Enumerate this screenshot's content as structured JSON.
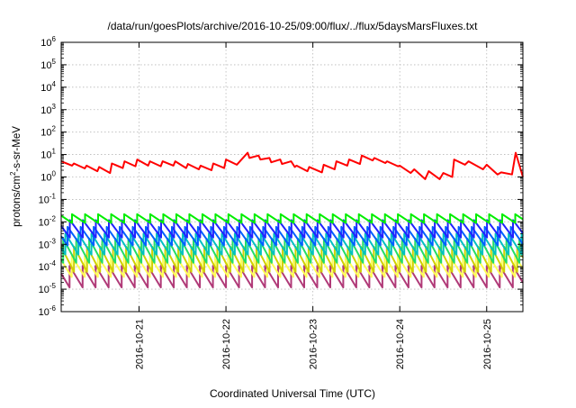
{
  "chart_data": {
    "type": "line",
    "title": "/data/run/goesPlots/archive/2016-10-25/09:00/flux/../flux/5daysMarsFluxes.txt",
    "xlabel": "Coordinated Universal Time (UTC)",
    "ylabel": "protons/cm2-s-sr-MeV",
    "y_scale": "log",
    "grid": true,
    "legend": "none",
    "xlim": [
      "2016-10-20T02:30",
      "2016-10-25T10:00"
    ],
    "ylim": [
      1e-06,
      1000000.0
    ],
    "x_tick_labels": [
      "2016-10-21",
      "2016-10-22",
      "2016-10-23",
      "2016-10-24",
      "2016-10-25"
    ],
    "y_tick_labels": [
      "10-6",
      "10-5",
      "10-4",
      "10-3",
      "10-2",
      "10-1",
      "100",
      "101",
      "102",
      "103",
      "104",
      "105",
      "106"
    ],
    "series": [
      {
        "color": "#ff0000",
        "x": [
          "2016-10-20T02:30",
          "2016-10-20T05:30",
          "2016-10-20T06:00",
          "2016-10-20T09:00",
          "2016-10-20T09:30",
          "2016-10-20T12:30",
          "2016-10-20T13:00",
          "2016-10-20T16:00",
          "2016-10-20T16:30",
          "2016-10-20T19:30",
          "2016-10-20T20:00",
          "2016-10-20T23:00",
          "2016-10-20T23:30",
          "2016-10-21T02:30",
          "2016-10-21T03:00",
          "2016-10-21T06:00",
          "2016-10-21T06:30",
          "2016-10-21T09:30",
          "2016-10-21T10:00",
          "2016-10-21T13:00",
          "2016-10-21T13:30",
          "2016-10-21T16:30",
          "2016-10-21T17:00",
          "2016-10-21T20:00",
          "2016-10-21T20:30",
          "2016-10-21T23:30",
          "2016-10-22T00:00",
          "2016-10-22T03:00",
          "2016-10-22T06:00",
          "2016-10-22T06:30",
          "2016-10-22T09:00",
          "2016-10-22T09:30",
          "2016-10-22T12:00",
          "2016-10-22T12:30",
          "2016-10-22T15:00",
          "2016-10-22T15:30",
          "2016-10-22T18:00",
          "2016-10-22T19:00",
          "2016-10-22T19:30",
          "2016-10-22T22:30",
          "2016-10-22T23:00",
          "2016-10-23T02:30",
          "2016-10-23T03:00",
          "2016-10-23T06:00",
          "2016-10-23T06:30",
          "2016-10-23T09:30",
          "2016-10-23T10:00",
          "2016-10-23T13:00",
          "2016-10-23T13:30",
          "2016-10-23T16:30",
          "2016-10-23T17:00",
          "2016-10-23T20:00",
          "2016-10-23T20:30",
          "2016-10-23T23:30",
          "2016-10-24T00:00",
          "2016-10-24T03:00",
          "2016-10-24T04:00",
          "2016-10-24T07:00",
          "2016-10-24T08:00",
          "2016-10-24T11:00",
          "2016-10-24T12:00",
          "2016-10-24T14:30",
          "2016-10-24T15:00",
          "2016-10-24T18:00",
          "2016-10-24T19:00",
          "2016-10-24T23:00",
          "2016-10-25T00:00",
          "2016-10-25T03:00",
          "2016-10-25T04:00",
          "2016-10-25T07:00",
          "2016-10-25T08:00",
          "2016-10-25T10:00"
        ],
        "y": [
          5,
          3.2,
          4,
          2.4,
          3.2,
          1.8,
          2.8,
          1.5,
          4,
          2.5,
          5,
          3,
          6,
          3.2,
          5,
          3,
          5,
          3.2,
          5,
          2.5,
          3.8,
          2.2,
          3.2,
          2,
          4,
          2.5,
          6,
          3.5,
          12,
          7,
          9,
          6,
          7,
          4.5,
          6,
          3.8,
          5,
          2.8,
          3.2,
          1.8,
          2.8,
          1.6,
          3.5,
          2.2,
          5,
          3.2,
          6,
          3.8,
          9,
          5.5,
          7,
          4.2,
          5,
          3,
          3.2,
          1.5,
          2.2,
          0.8,
          1.8,
          0.8,
          1.5,
          1,
          6,
          3.5,
          5,
          2.2,
          3.5,
          1.3,
          1.6,
          1.3,
          12,
          1
        ]
      },
      {
        "color": "#00ee00",
        "cycle_hours": 3.6,
        "peak": 0.022,
        "trough": 0.009
      },
      {
        "color": "#2222ff",
        "cycle_hours": 3.6,
        "peak": 0.012,
        "trough": 0.002
      },
      {
        "color": "#0060ff",
        "cycle_hours": 3.6,
        "peak": 0.006,
        "trough": 0.0009
      },
      {
        "color": "#00c0c0",
        "cycle_hours": 3.6,
        "peak": 0.003,
        "trough": 0.00035
      },
      {
        "color": "#22dd66",
        "cycle_hours": 3.6,
        "peak": 0.0018,
        "trough": 0.00015
      },
      {
        "color": "#d0d000",
        "cycle_hours": 3.6,
        "peak": 0.0008,
        "trough": 6e-05
      },
      {
        "color": "#ffff55",
        "cycle_hours": 3.6,
        "peak": 0.0003,
        "trough": 3.5e-05
      },
      {
        "color": "#b03a78",
        "cycle_hours": 3.6,
        "peak": 0.00011,
        "trough": 1.2e-05
      }
    ]
  }
}
